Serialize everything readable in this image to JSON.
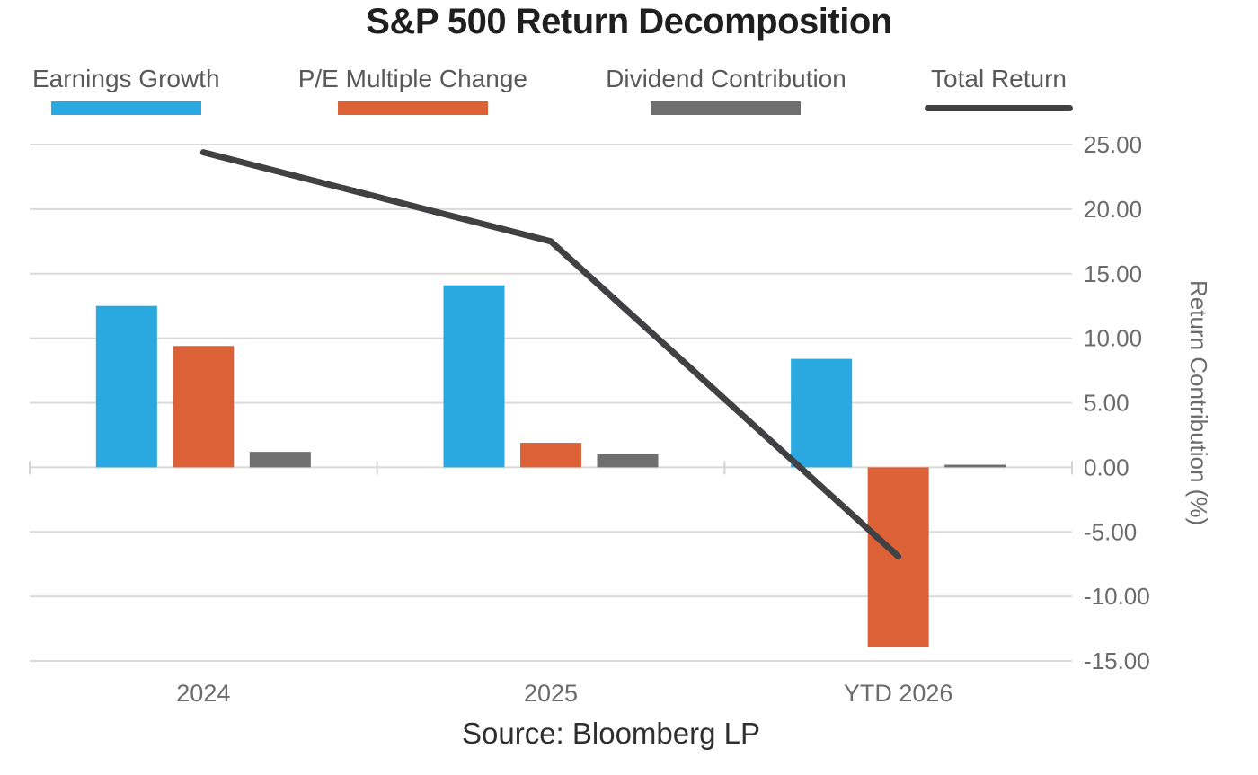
{
  "title": "S&P 500 Return Decomposition",
  "source": "Source: Bloomberg LP",
  "chart_data": {
    "type": "bar+line",
    "title": "S&P 500 Return Decomposition",
    "categories": [
      "2024",
      "2025",
      "YTD 2026"
    ],
    "series": [
      {
        "name": "Earnings Growth",
        "type": "bar",
        "color": "#29A9E0",
        "values": [
          12.5,
          14.1,
          8.4
        ]
      },
      {
        "name": "P/E Multiple Change",
        "type": "bar",
        "color": "#DC6137",
        "values": [
          9.4,
          1.9,
          -13.9
        ]
      },
      {
        "name": "Dividend Contribution",
        "type": "bar",
        "color": "#6F6F6F",
        "values": [
          1.2,
          1.0,
          0.2
        ]
      },
      {
        "name": "Total Return",
        "type": "line",
        "color": "#414042",
        "values": [
          24.4,
          17.5,
          -6.9
        ]
      }
    ],
    "xlabel": "",
    "ylabel": "Return Contribution (%)",
    "ylim": [
      -15,
      25
    ],
    "ytick_step": 5,
    "ytick_labels": [
      "25.00",
      "20.00",
      "15.00",
      "10.00",
      "5.00",
      "0.00",
      "-5.00",
      "-10.00",
      "-15.00"
    ],
    "grid": true,
    "legend_position": "top",
    "source": "Source: Bloomberg LP"
  },
  "colors": {
    "earnings_growth": "#29A9E0",
    "pe_multiple_change": "#DC6137",
    "dividend_contribution": "#6F6F6F",
    "total_return_line": "#414042",
    "gridline": "#DADADA",
    "boundary_tick": "#D4D4D4",
    "axis_text": "#6B6B6B",
    "legend_text": "#58595B",
    "title_text": "#1F1F1F",
    "source_text": "#2F2F2F"
  }
}
